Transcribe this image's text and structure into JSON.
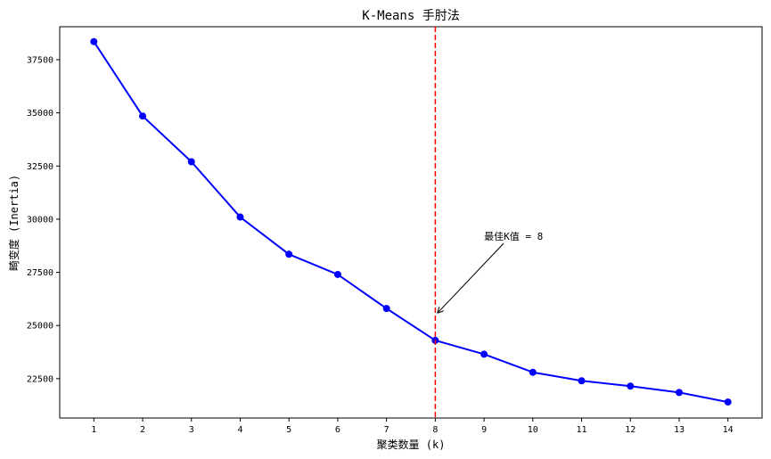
{
  "chart_data": {
    "type": "line",
    "title": "K-Means 手肘法",
    "xlabel": "聚类数量 (k)",
    "ylabel": "畸变度 (Inertia)",
    "x": [
      1,
      2,
      3,
      4,
      5,
      6,
      7,
      8,
      9,
      10,
      11,
      12,
      13,
      14
    ],
    "series": [
      {
        "values": [
          38350,
          34850,
          32700,
          30100,
          28350,
          27400,
          25800,
          24300,
          23650,
          22800,
          22400,
          22150,
          21850,
          21400
        ],
        "color": "#0000ff",
        "marker": "circle"
      }
    ],
    "xticks": [
      "1",
      "2",
      "3",
      "4",
      "5",
      "6",
      "7",
      "8",
      "9",
      "10",
      "11",
      "12",
      "13",
      "14"
    ],
    "yticks": [
      22500,
      25000,
      27500,
      30000,
      32500,
      35000,
      37500
    ],
    "ytick_labels": [
      "22500",
      "25000",
      "27500",
      "30000",
      "32500",
      "35000",
      "37500"
    ],
    "xlim": [
      0.3,
      14.7
    ],
    "ylim": [
      20650,
      39050
    ],
    "grid": false,
    "vline": {
      "x": 8,
      "color": "#ff0000",
      "style": "dashed"
    },
    "annotation": {
      "text": "最佳K值 = 8",
      "text_x": 9,
      "text_y": 29200,
      "arrow_x": 8.05,
      "arrow_y": 25600
    }
  }
}
